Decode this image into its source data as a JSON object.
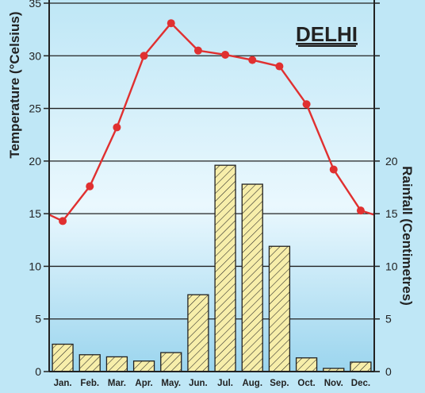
{
  "chart_data": {
    "type": "bar+line",
    "title": "DELHI",
    "categories": [
      "Jan.",
      "Feb.",
      "Mar.",
      "Apr.",
      "May.",
      "Jun.",
      "Jul.",
      "Aug.",
      "Sep.",
      "Oct.",
      "Nov.",
      "Dec."
    ],
    "left_axis": {
      "label": "Temperature (°Celsius)",
      "ylim": [
        0,
        35
      ],
      "ticks": [
        0,
        5,
        10,
        15,
        20,
        25,
        30,
        35
      ]
    },
    "right_axis": {
      "label": "Rainfall (Centimetres)",
      "ylim": [
        0,
        35
      ],
      "ticks": [
        0,
        5,
        10,
        15,
        20
      ]
    },
    "series": [
      {
        "kind": "line",
        "axis": "left",
        "values": [
          14.3,
          17.6,
          23.2,
          30.0,
          33.1,
          30.5,
          30.1,
          29.6,
          29.0,
          25.4,
          19.2,
          15.3
        ],
        "edge_values": [
          14.9,
          14.9
        ],
        "color": "#e03030"
      },
      {
        "kind": "bar",
        "axis": "right",
        "values": [
          2.6,
          1.6,
          1.4,
          1.0,
          1.8,
          7.3,
          19.6,
          17.8,
          11.9,
          1.3,
          0.3,
          0.9
        ],
        "fill": "#f7eeaa",
        "hatch": "#222222"
      }
    ],
    "grid": true,
    "background_gradient": [
      "#bfe7f6",
      "#e8f7fd",
      "#96d2ec"
    ]
  }
}
